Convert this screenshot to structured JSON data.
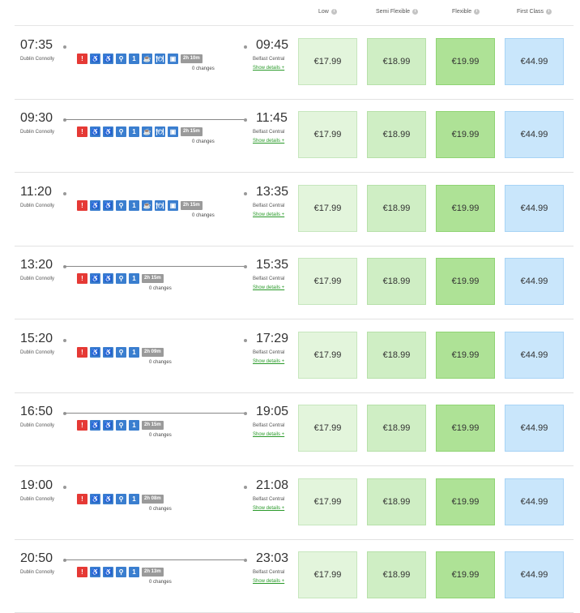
{
  "header": {
    "columns": [
      "Low",
      "Semi Flexible",
      "Flexible",
      "First Class"
    ]
  },
  "icons": {
    "alert": "!",
    "wheelchair": "♿",
    "assist": "♿",
    "bike": "⚲",
    "class": "1",
    "coffee": "☕",
    "food": "🍽",
    "bus": "▣"
  },
  "rows": [
    {
      "dep": "07:35",
      "from": "Dublin Connolly",
      "arr": "09:45",
      "to": "Belfast Central",
      "duration": "2h 10m",
      "changes": "0 changes",
      "details": "Show details +",
      "fares": [
        "€17.99",
        "€18.99",
        "€19.99",
        "€44.99"
      ],
      "line": false,
      "extras": true
    },
    {
      "dep": "09:30",
      "from": "Dublin Connolly",
      "arr": "11:45",
      "to": "Belfast Central",
      "duration": "2h 15m",
      "changes": "0 changes",
      "details": "Show details +",
      "fares": [
        "€17.99",
        "€18.99",
        "€19.99",
        "€44.99"
      ],
      "line": true,
      "extras": true
    },
    {
      "dep": "11:20",
      "from": "Dublin Connolly",
      "arr": "13:35",
      "to": "Belfast Central",
      "duration": "2h 15m",
      "changes": "0 changes",
      "details": "Show details +",
      "fares": [
        "€17.99",
        "€18.99",
        "€19.99",
        "€44.99"
      ],
      "line": false,
      "extras": true
    },
    {
      "dep": "13:20",
      "from": "Dublin Connolly",
      "arr": "15:35",
      "to": "Belfast Central",
      "duration": "2h 15m",
      "changes": "0 changes",
      "details": "Show details +",
      "fares": [
        "€17.99",
        "€18.99",
        "€19.99",
        "€44.99"
      ],
      "line": true,
      "extras": false
    },
    {
      "dep": "15:20",
      "from": "Dublin Connolly",
      "arr": "17:29",
      "to": "Belfast Central",
      "duration": "2h 09m",
      "changes": "0 changes",
      "details": "Show details +",
      "fares": [
        "€17.99",
        "€18.99",
        "€19.99",
        "€44.99"
      ],
      "line": false,
      "extras": false
    },
    {
      "dep": "16:50",
      "from": "Dublin Connolly",
      "arr": "19:05",
      "to": "Belfast Central",
      "duration": "2h 15m",
      "changes": "0 changes",
      "details": "Show details +",
      "fares": [
        "€17.99",
        "€18.99",
        "€19.99",
        "€44.99"
      ],
      "line": true,
      "extras": false
    },
    {
      "dep": "19:00",
      "from": "Dublin Connolly",
      "arr": "21:08",
      "to": "Belfast Central",
      "duration": "2h 08m",
      "changes": "0 changes",
      "details": "Show details +",
      "fares": [
        "€17.99",
        "€18.99",
        "€19.99",
        "€44.99"
      ],
      "line": false,
      "extras": false
    },
    {
      "dep": "20:50",
      "from": "Dublin Connolly",
      "arr": "23:03",
      "to": "Belfast Central",
      "duration": "2h 13m",
      "changes": "0 changes",
      "details": "Show details +",
      "fares": [
        "€17.99",
        "€18.99",
        "€19.99",
        "€44.99"
      ],
      "line": true,
      "extras": false
    }
  ]
}
